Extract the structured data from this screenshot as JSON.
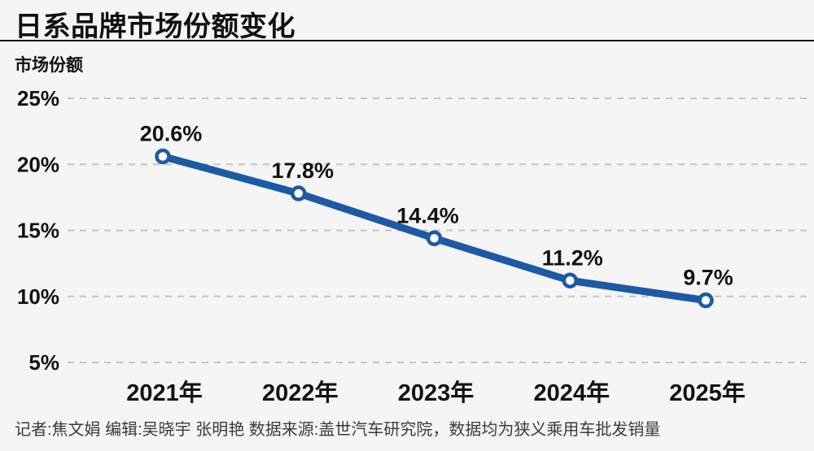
{
  "page": {
    "background_color": "#f5f5f5"
  },
  "chart_data": {
    "type": "line",
    "title": "日系品牌市场份额变化",
    "ylabel": "市场份额",
    "xlabel": "",
    "categories": [
      "2021年",
      "2022年",
      "2023年",
      "2024年",
      "2025年"
    ],
    "values": [
      20.6,
      17.8,
      14.4,
      11.2,
      9.7
    ],
    "point_labels": [
      "20.6%",
      "17.8%",
      "14.4%",
      "11.2%",
      "9.7%"
    ],
    "yticks": [
      25,
      20,
      15,
      10,
      5
    ],
    "ytick_labels": [
      "25%",
      "20%",
      "15%",
      "10%",
      "5%"
    ],
    "ylim": [
      2.5,
      27.5
    ],
    "grid": "horizontal-dashed",
    "grid_color": "#c5c5c5",
    "legend": "none",
    "line_color": "#1d5aa6",
    "marker_style": "white-circle-blue-ring",
    "marker_fill": "#ffffff",
    "label_color": "#121212"
  },
  "footer": {
    "credits": "记者:焦文娟  编辑:吴晓宇 张明艳  数据来源:盖世汽车研究院，数据均为狭义乘用车批发销量"
  }
}
